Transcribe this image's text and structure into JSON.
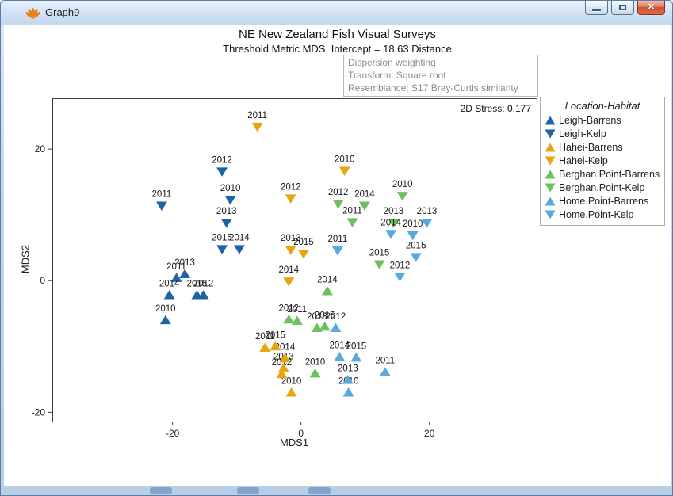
{
  "window": {
    "title": "Graph9",
    "minimize_label": "minimize",
    "maximize_label": "maximize",
    "close_label": "close",
    "close_glyph": "✕"
  },
  "header": {
    "title": "NE New Zealand Fish Visual Surveys",
    "subtitle": "Threshold Metric MDS, Intercept = 18.63 Distance"
  },
  "info_box": {
    "lines": [
      "Dispersion weighting",
      "Transform: Square root",
      "Resemblance: S17 Bray-Curtis similarity"
    ]
  },
  "plot": {
    "stress_label": "2D Stress: 0.177",
    "xlabel": "MDS1",
    "ylabel": "MDS2"
  },
  "legend": {
    "title": "Location-Habitat",
    "items": [
      {
        "label": "Leigh-Barrens",
        "shape": "triangle-up",
        "color": "#1f63a4"
      },
      {
        "label": "Leigh-Kelp",
        "shape": "triangle-down",
        "color": "#1f63a4"
      },
      {
        "label": "Hahei-Barrens",
        "shape": "triangle-up",
        "color": "#e9a510"
      },
      {
        "label": "Hahei-Kelp",
        "shape": "triangle-down",
        "color": "#e9a510"
      },
      {
        "label": "Berghan.Point-Barrens",
        "shape": "triangle-up",
        "color": "#6cc05e"
      },
      {
        "label": "Berghan.Point-Kelp",
        "shape": "triangle-down",
        "color": "#6cc05e"
      },
      {
        "label": "Home.Point-Barrens",
        "shape": "triangle-up",
        "color": "#58a9df"
      },
      {
        "label": "Home.Point-Kelp",
        "shape": "triangle-down",
        "color": "#58a9df"
      }
    ]
  },
  "chart_data": {
    "type": "scatter",
    "title": "NE New Zealand Fish Visual Surveys",
    "subtitle": "Threshold Metric MDS, Intercept = 18.63 Distance",
    "annotations": [
      "Dispersion weighting",
      "Transform: Square root",
      "Resemblance: S17 Bray-Curtis similarity",
      "2D Stress: 0.177"
    ],
    "xlabel": "MDS1",
    "ylabel": "MDS2",
    "x_ticks": [
      -20,
      0,
      20
    ],
    "y_ticks": [
      -20,
      0,
      20
    ],
    "xlim": [
      -38.6,
      36.7
    ],
    "ylim": [
      -21.4,
      27.6
    ],
    "grid": false,
    "legend_title": "Location-Habitat",
    "legend_position": "right-outside",
    "point_label_field": "year",
    "series": [
      {
        "name": "Leigh-Barrens",
        "marker": "triangle-up",
        "color": "#1f63a4",
        "points": [
          {
            "year": "2010",
            "x": -21.1,
            "y": -6.0
          },
          {
            "year": "2011",
            "x": -19.4,
            "y": 0.4
          },
          {
            "year": "2012",
            "x": -15.2,
            "y": -2.2
          },
          {
            "year": "2013",
            "x": -18.1,
            "y": 1.0
          },
          {
            "year": "2014",
            "x": -20.5,
            "y": -2.2
          },
          {
            "year": "2015",
            "x": -16.2,
            "y": -2.2
          }
        ]
      },
      {
        "name": "Leigh-Kelp",
        "marker": "triangle-down",
        "color": "#1f63a4",
        "points": [
          {
            "year": "2010",
            "x": -11.0,
            "y": 12.3
          },
          {
            "year": "2011",
            "x": -21.7,
            "y": 11.4
          },
          {
            "year": "2012",
            "x": -12.3,
            "y": 16.6
          },
          {
            "year": "2013",
            "x": -11.6,
            "y": 8.8
          },
          {
            "year": "2014",
            "x": -9.6,
            "y": 4.8
          },
          {
            "year": "2015",
            "x": -12.3,
            "y": 4.8
          }
        ]
      },
      {
        "name": "Hahei-Barrens",
        "marker": "triangle-up",
        "color": "#e9a510",
        "points": [
          {
            "year": "2010",
            "x": -1.5,
            "y": -17.0
          },
          {
            "year": "2011",
            "x": -5.6,
            "y": -10.2
          },
          {
            "year": "2012",
            "x": -3.0,
            "y": -14.2
          },
          {
            "year": "2013",
            "x": -2.7,
            "y": -13.3
          },
          {
            "year": "2014",
            "x": -2.5,
            "y": -11.8
          },
          {
            "year": "2015",
            "x": -4.0,
            "y": -10.0
          }
        ]
      },
      {
        "name": "Hahei-Kelp",
        "marker": "triangle-down",
        "color": "#e9a510",
        "points": [
          {
            "year": "2010",
            "x": 6.8,
            "y": 16.7
          },
          {
            "year": "2011",
            "x": -6.8,
            "y": 23.4
          },
          {
            "year": "2012",
            "x": -1.6,
            "y": 12.5
          },
          {
            "year": "2013",
            "x": -1.6,
            "y": 4.7
          },
          {
            "year": "2014",
            "x": -1.9,
            "y": -0.1
          },
          {
            "year": "2015",
            "x": 0.4,
            "y": 4.1
          }
        ]
      },
      {
        "name": "Berghan.Point-Barrens",
        "marker": "triangle-up",
        "color": "#6cc05e",
        "points": [
          {
            "year": "2010",
            "x": 2.2,
            "y": -14.1
          },
          {
            "year": "2011",
            "x": -0.6,
            "y": -6.1
          },
          {
            "year": "2012",
            "x": -1.9,
            "y": -5.9
          },
          {
            "year": "2013",
            "x": 2.5,
            "y": -7.2
          },
          {
            "year": "2014",
            "x": 4.1,
            "y": -1.6
          },
          {
            "year": "2015",
            "x": 3.7,
            "y": -7.0
          }
        ]
      },
      {
        "name": "Berghan.Point-Kelp",
        "marker": "triangle-down",
        "color": "#6cc05e",
        "points": [
          {
            "year": "2010",
            "x": 15.8,
            "y": 12.9
          },
          {
            "year": "2011",
            "x": 8.0,
            "y": 8.9
          },
          {
            "year": "2012",
            "x": 5.8,
            "y": 11.7
          },
          {
            "year": "2013",
            "x": 14.4,
            "y": 8.8
          },
          {
            "year": "2014",
            "x": 9.9,
            "y": 11.4
          },
          {
            "year": "2015",
            "x": 12.2,
            "y": 2.5
          }
        ]
      },
      {
        "name": "Home.Point-Barrens",
        "marker": "triangle-up",
        "color": "#58a9df",
        "points": [
          {
            "year": "2010",
            "x": 7.4,
            "y": -17.0
          },
          {
            "year": "2011",
            "x": 13.1,
            "y": -13.9
          },
          {
            "year": "2012",
            "x": 5.4,
            "y": -7.2
          },
          {
            "year": "2013",
            "x": 7.3,
            "y": -15.1
          },
          {
            "year": "2014",
            "x": 6.0,
            "y": -11.6
          },
          {
            "year": "2015",
            "x": 8.6,
            "y": -11.7
          }
        ]
      },
      {
        "name": "Home.Point-Kelp",
        "marker": "triangle-down",
        "color": "#58a9df",
        "points": [
          {
            "year": "2010",
            "x": 17.4,
            "y": 6.9
          },
          {
            "year": "2011",
            "x": 5.7,
            "y": 4.6
          },
          {
            "year": "2012",
            "x": 15.4,
            "y": 0.6
          },
          {
            "year": "2013",
            "x": 19.6,
            "y": 8.8
          },
          {
            "year": "2014",
            "x": 14.0,
            "y": 7.1
          },
          {
            "year": "2015",
            "x": 17.9,
            "y": 3.6
          }
        ]
      }
    ]
  }
}
